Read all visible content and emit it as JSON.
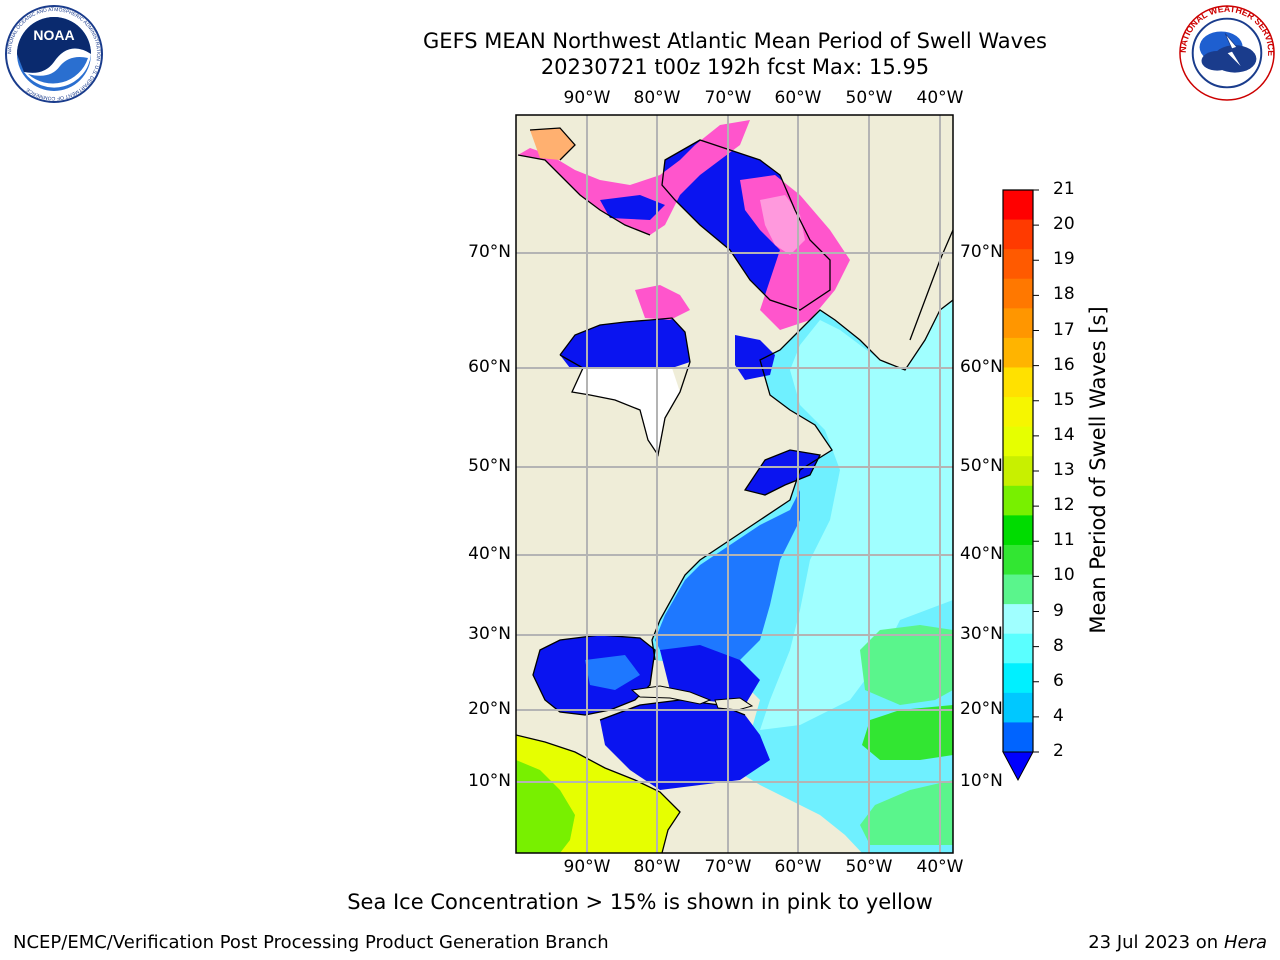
{
  "title": {
    "line1": "GEFS MEAN Northwest Atlantic Mean Period of Swell Waves",
    "line2": "20230721 t00z 192h fcst   Max: 15.95"
  },
  "logos": {
    "noaa": {
      "text": "NOAA",
      "ring_text": "NATIONAL OCEANIC AND ATMOSPHERIC ADMINISTRATION · U.S. DEPARTMENT OF COMMERCE"
    },
    "nws": {
      "ring_text": "NATIONAL WEATHER SERVICE"
    }
  },
  "map": {
    "longitude_labels": [
      "90°W",
      "80°W",
      "70°W",
      "60°W",
      "50°W",
      "40°W"
    ],
    "latitude_labels": [
      "70°N",
      "60°N",
      "50°N",
      "40°N",
      "30°N",
      "20°N",
      "10°N"
    ],
    "colors": {
      "land": "#efedd8",
      "coast": "#000000",
      "grid": "#b4b4b4",
      "ice_pink": "#ff55cc",
      "ice_orange": "#ffb070"
    }
  },
  "colorbar": {
    "label": "Mean Period of Swell Waves [s]",
    "ticks": [
      "21",
      "20",
      "19",
      "18",
      "17",
      "16",
      "15",
      "14",
      "13",
      "12",
      "11",
      "10",
      "9",
      "8",
      "6",
      "4",
      "2"
    ],
    "colors": [
      "#ff0000",
      "#ff3a00",
      "#ff5a00",
      "#ff7800",
      "#ff9600",
      "#ffb400",
      "#ffe100",
      "#f6f600",
      "#e6ff00",
      "#c8f000",
      "#78f000",
      "#00dc00",
      "#32e632",
      "#5af58c",
      "#a0ffff",
      "#5affff",
      "#00f0ff",
      "#00c8ff",
      "#0064ff"
    ],
    "extend_color": "#0000ff"
  },
  "note": "Sea Ice Concentration > 15% is shown in pink to yellow",
  "footer": {
    "left": "NCEP/EMC/Verification Post Processing Product Generation Branch",
    "date": "23 Jul 2023 on ",
    "machine": "Hera"
  }
}
